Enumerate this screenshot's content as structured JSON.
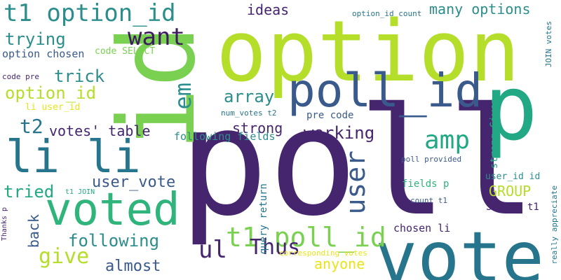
{
  "palette": {
    "background": "#ffffff",
    "purple": "#46256f",
    "dark-purple": "#3c1c5e",
    "blue": "#3a5a8c",
    "teal": "#26758c",
    "dark-teal": "#1f6e7c",
    "cyan": "#2b8e8c",
    "green-teal": "#22a884",
    "green": "#2fb47c",
    "mid-green": "#4fc168",
    "light-green": "#7ad151",
    "lime": "#b5de2b",
    "yellow": "#e8e419"
  },
  "words": [
    {
      "text": "poll",
      "color": "purple"
    },
    {
      "text": "vote",
      "color": "teal"
    },
    {
      "text": "option",
      "color": "lime"
    },
    {
      "text": "id",
      "color": "light-green"
    },
    {
      "text": "p",
      "color": "green-teal"
    },
    {
      "text": "poll_id",
      "color": "blue"
    },
    {
      "text": "voted",
      "color": "green"
    },
    {
      "text": "li li",
      "color": "teal"
    },
    {
      "text": "t1 option_id",
      "color": "cyan"
    },
    {
      "text": "want",
      "color": "dark-purple"
    },
    {
      "text": "t1 poll_id",
      "color": "light-green"
    },
    {
      "text": "amp",
      "color": "green-teal"
    },
    {
      "text": "user",
      "color": "blue"
    },
    {
      "text": "em",
      "color": "cyan"
    },
    {
      "text": "ul",
      "color": "purple"
    },
    {
      "text": "Thus",
      "color": "purple"
    },
    {
      "text": "give",
      "color": "lime"
    },
    {
      "text": "following",
      "color": "cyan"
    },
    {
      "text": "array",
      "color": "cyan"
    },
    {
      "text": "working",
      "color": "purple"
    },
    {
      "text": "user_vote",
      "color": "blue"
    },
    {
      "text": "many options",
      "color": "cyan"
    },
    {
      "text": "ideas",
      "color": "purple"
    },
    {
      "text": "trying",
      "color": "cyan"
    },
    {
      "text": "option_id",
      "color": "lime"
    },
    {
      "text": "trick",
      "color": "cyan"
    },
    {
      "text": "t2",
      "color": "teal"
    },
    {
      "text": "votes' table",
      "color": "purple"
    },
    {
      "text": "strong",
      "color": "purple"
    },
    {
      "text": "almost",
      "color": "blue"
    },
    {
      "text": "anyone",
      "color": "yellow"
    },
    {
      "text": "tried",
      "color": "green-teal"
    },
    {
      "text": "back",
      "color": "blue"
    },
    {
      "text": "GROUP",
      "color": "lime"
    },
    {
      "text": "option chosen",
      "color": "blue"
    },
    {
      "text": "code SELECT",
      "color": "light-green"
    },
    {
      "text": "following fields",
      "color": "cyan"
    },
    {
      "text": "pre code",
      "color": "blue"
    },
    {
      "text": "num_votes t2",
      "color": "teal"
    },
    {
      "text": "fields p",
      "color": "green"
    },
    {
      "text": "poll provided",
      "color": "blue"
    },
    {
      "text": "user_id id",
      "color": "cyan"
    },
    {
      "text": "SELECT t1",
      "color": "purple"
    },
    {
      "text": "chosen li",
      "color": "purple"
    },
    {
      "text": "corresponding votes",
      "color": "yellow"
    },
    {
      "text": "count t1",
      "color": "blue"
    },
    {
      "text": "query return",
      "color": "teal"
    },
    {
      "text": "strong Given",
      "color": "green-teal"
    },
    {
      "text": "option_id count",
      "color": "teal"
    },
    {
      "text": "JOIN votes",
      "color": "teal"
    },
    {
      "text": "really appreciate",
      "color": "teal"
    },
    {
      "text": "li user_id",
      "color": "yellow"
    },
    {
      "text": "code pre",
      "color": "purple"
    },
    {
      "text": "t1 JOIN",
      "color": "green-teal"
    },
    {
      "text": "Thanks p",
      "color": "purple"
    }
  ]
}
